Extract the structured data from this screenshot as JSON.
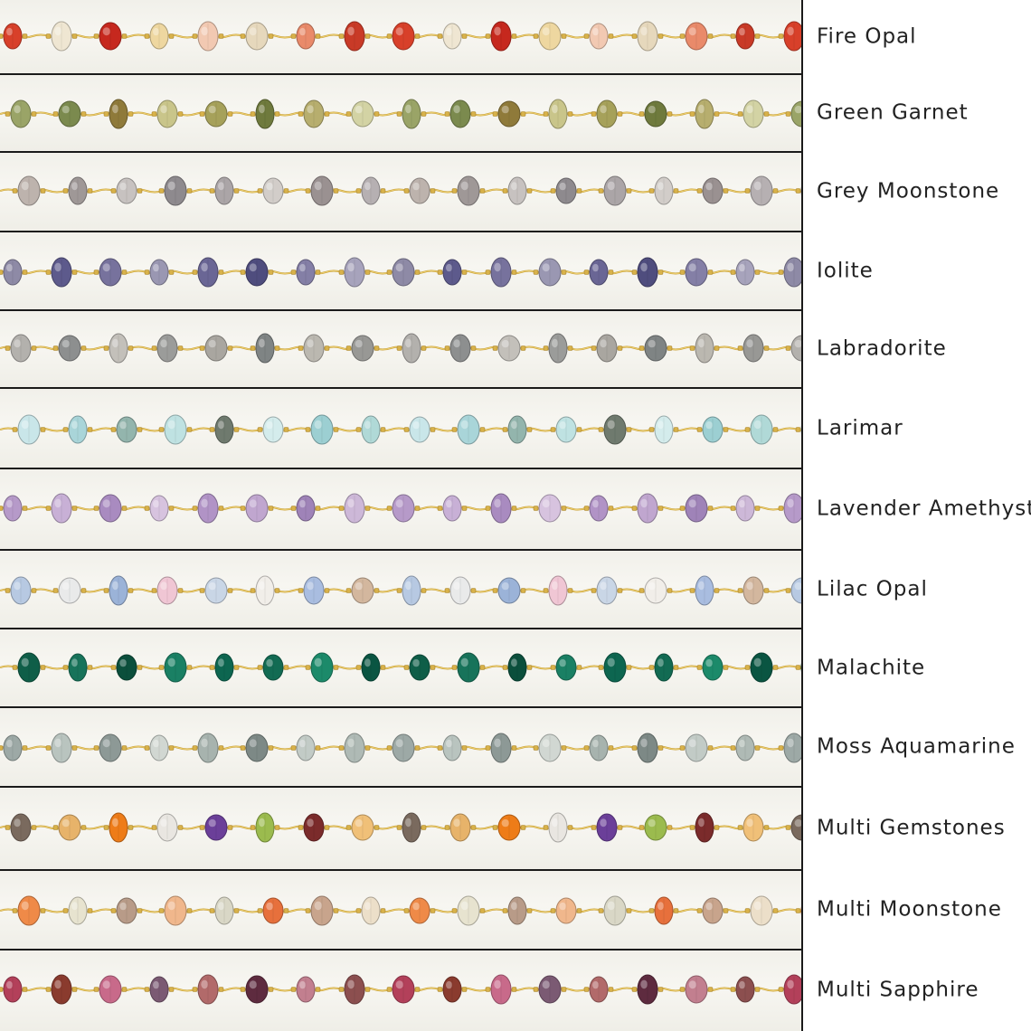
{
  "chains": [
    {
      "name": "Fire Opal",
      "colors": [
        "#d8402a",
        "#efe6d2",
        "#c6281e",
        "#eed7a0",
        "#f2c9b2",
        "#e6d8bc",
        "#e98a6a",
        "#c93a27"
      ]
    },
    {
      "name": "Green Garnet",
      "colors": [
        "#9aa467",
        "#7b8a4e",
        "#8f7a3a",
        "#c9c58a",
        "#a6a15a",
        "#6f7a3d",
        "#b7ae6e",
        "#d3d3a4"
      ]
    },
    {
      "name": "Grey Moonstone",
      "colors": [
        "#bdb3ad",
        "#9f9897",
        "#c7c2c0",
        "#8e8a8e",
        "#aba5a7",
        "#d2cdc9",
        "#9a9191",
        "#b6b0b2"
      ]
    },
    {
      "name": "Iolite",
      "colors": [
        "#8e8aa6",
        "#5d5a8c",
        "#77729d",
        "#9a97b2",
        "#6a6695",
        "#4f4d7e",
        "#847fa6",
        "#a7a3bc"
      ]
    },
    {
      "name": "Labradorite",
      "colors": [
        "#b3b1ad",
        "#8d8f8f",
        "#c3c0ba",
        "#9b9c9a",
        "#a9a6a0",
        "#7f8484",
        "#bbb8b0",
        "#989895"
      ]
    },
    {
      "name": "Larimar",
      "colors": [
        "#c9e6e9",
        "#a9d5d9",
        "#93b5ad",
        "#bfe2e2",
        "#6f7a6e",
        "#d4ecec",
        "#9ccfd2",
        "#b0d9d7"
      ]
    },
    {
      "name": "Lavender Amethyst",
      "colors": [
        "#b69ac9",
        "#c8b0d6",
        "#a98bc0",
        "#d7c3df",
        "#b193c6",
        "#c0a6cf",
        "#9f83b8",
        "#cdb8d8"
      ]
    },
    {
      "name": "Lilac Opal",
      "colors": [
        "#b7c9e2",
        "#e9eaea",
        "#9bb3d8",
        "#f0c6d4",
        "#c9d6e6",
        "#f1eee9",
        "#a9bde0",
        "#d3b79e"
      ]
    },
    {
      "name": "Malachite",
      "colors": [
        "#0f5e48",
        "#17735a",
        "#0b4f3c",
        "#1a8064",
        "#0d6650",
        "#126b53",
        "#1c8a6a",
        "#0a5542"
      ]
    },
    {
      "name": "Moss Aquamarine",
      "colors": [
        "#9da9a6",
        "#b9c4bf",
        "#8d9996",
        "#d1d7d2",
        "#a7b3ae",
        "#7d8986",
        "#c2cbc6",
        "#afbab5"
      ]
    },
    {
      "name": "Multi Gemstones",
      "colors": [
        "#7a6a5e",
        "#e7b36a",
        "#ee7c18",
        "#e9e6e1",
        "#6b3f99",
        "#9bbb4e",
        "#7b2b2b",
        "#f0c078"
      ]
    },
    {
      "name": "Multi Moonstone",
      "colors": [
        "#ef8a48",
        "#e7e3cf",
        "#b89b88",
        "#f0b78c",
        "#d9d7c6",
        "#e7703c",
        "#c8a48c",
        "#ecdfc9"
      ]
    },
    {
      "name": "Multi Sapphire",
      "colors": [
        "#b3405a",
        "#8a3b2e",
        "#c86a8a",
        "#7b5a73",
        "#b26a6a",
        "#5e2b3f",
        "#c27f8f",
        "#8c4f4f"
      ]
    }
  ]
}
